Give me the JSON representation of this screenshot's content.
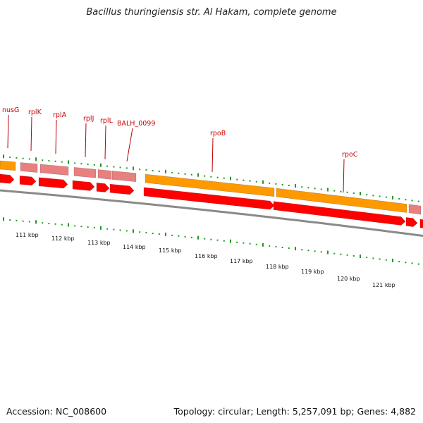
{
  "title": "Bacillus thuringiensis str. Al Hakam, complete genome",
  "footer": {
    "accession": "Accession: NC_008600",
    "topology": "Topology: circular; Length: 5,257,091 bp; Genes: 4,882"
  },
  "colors": {
    "cds_forward": "#ff0000",
    "gene_forward": "#ff9900",
    "gene_light": "#e88080",
    "backbone": "#8a8a8a",
    "tick": "#229922",
    "label": "#cc0000"
  },
  "gene_labels": [
    "nusG",
    "rplK",
    "rplA",
    "rplJ",
    "rplL",
    "BALH_0099",
    "rpoB",
    "rpoC"
  ],
  "kbp_labels": [
    "111 kbp",
    "112 kbp",
    "113 kbp",
    "114 kbp",
    "115 kbp",
    "116 kbp",
    "117 kbp",
    "118 kbp",
    "119 kbp",
    "120 kbp",
    "121 kbp"
  ]
}
